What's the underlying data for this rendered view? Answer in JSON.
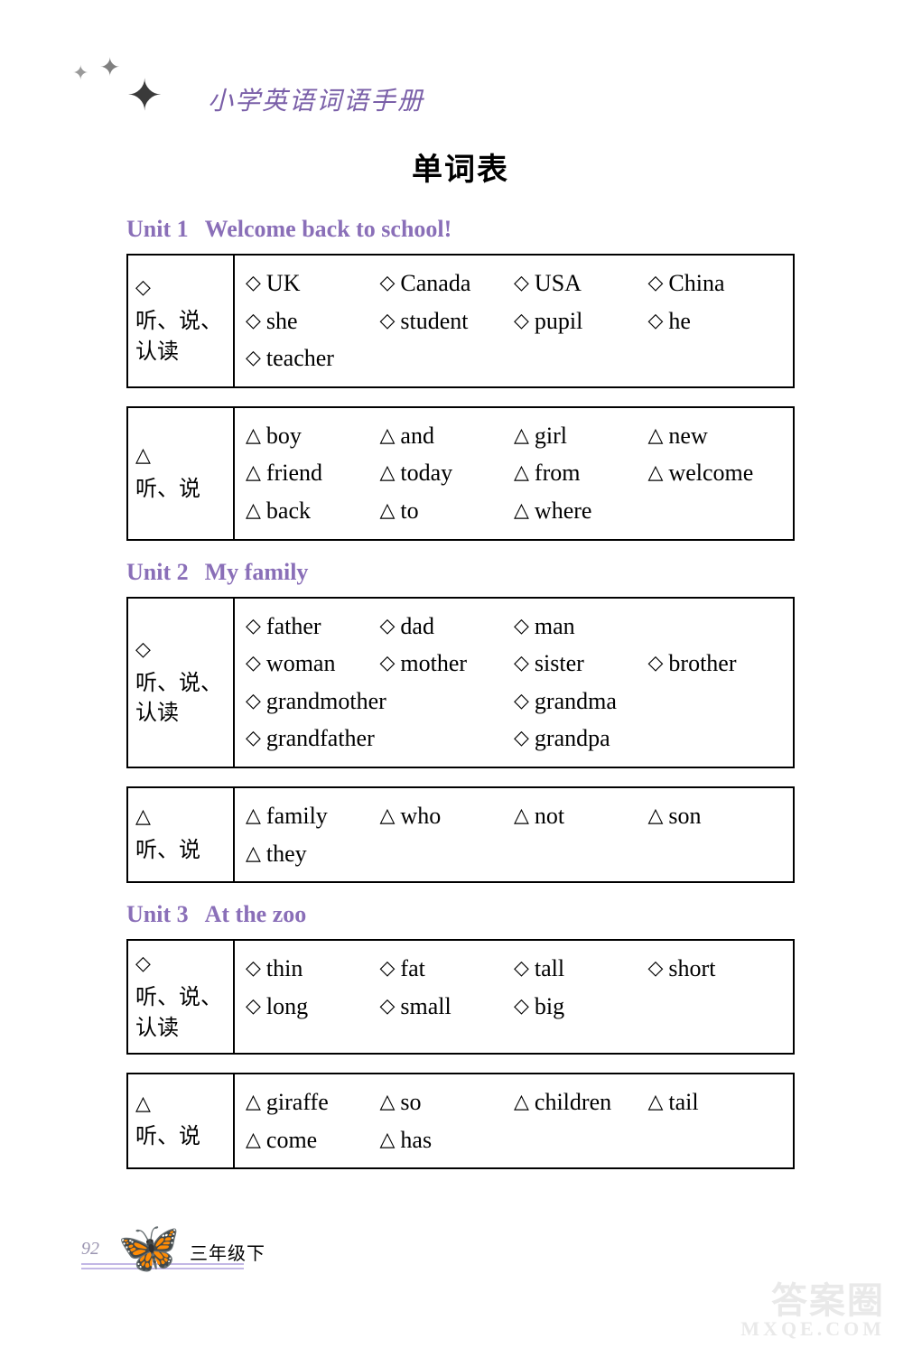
{
  "colors": {
    "text": "#000000",
    "accent": "#8a6fb8",
    "header_text": "#7a5fa8",
    "border": "#000000",
    "footer_line": "#c3b8e6",
    "watermark": "#d8d8d8",
    "background": "#ffffff"
  },
  "typography": {
    "body_fontsize": 26,
    "title_fontsize": 34,
    "unit_fontsize": 26,
    "label_fontsize": 24,
    "family": "Times New Roman / SimSun serif"
  },
  "header": {
    "subtitle": "小学英语词语手册"
  },
  "page_title": "单词表",
  "shapes": {
    "diamond": "◇",
    "triangle": "△"
  },
  "labels": {
    "listen_speak_read": "听、说、认读",
    "listen_speak": "听、说"
  },
  "units": [
    {
      "num": "Unit 1",
      "title": "Welcome back to school!",
      "boxes": [
        {
          "label_key": "listen_speak_read",
          "shape": "diamond",
          "rows": [
            [
              "UK",
              "Canada",
              "USA",
              "China"
            ],
            [
              "she",
              "student",
              "pupil",
              "he"
            ],
            [
              "teacher"
            ]
          ]
        },
        {
          "label_key": "listen_speak",
          "shape": "triangle",
          "rows": [
            [
              "boy",
              "and",
              "girl",
              "new"
            ],
            [
              "friend",
              "today",
              "from",
              "welcome"
            ],
            [
              "back",
              "to",
              "where"
            ]
          ]
        }
      ]
    },
    {
      "num": "Unit 2",
      "title": "My family",
      "boxes": [
        {
          "label_key": "listen_speak_read",
          "shape": "diamond",
          "rows_custom": [
            [
              {
                "t": "father",
                "w": "c"
              },
              {
                "t": "dad",
                "w": "c"
              },
              {
                "t": "man",
                "w": "c"
              }
            ],
            [
              {
                "t": "woman",
                "w": "c"
              },
              {
                "t": "mother",
                "w": "c"
              },
              {
                "t": "sister",
                "w": "c"
              },
              {
                "t": "brother",
                "w": "c"
              }
            ],
            [
              {
                "t": "grandmother",
                "w": "h"
              },
              {
                "t": "grandma",
                "w": "h"
              }
            ],
            [
              {
                "t": "grandfather",
                "w": "h"
              },
              {
                "t": "grandpa",
                "w": "h"
              }
            ]
          ]
        },
        {
          "label_key": "listen_speak",
          "shape": "triangle",
          "rows": [
            [
              "family",
              "who",
              "not",
              "son"
            ],
            [
              "they"
            ]
          ]
        }
      ]
    },
    {
      "num": "Unit 3",
      "title": "At the zoo",
      "boxes": [
        {
          "label_key": "listen_speak_read",
          "shape": "diamond",
          "rows": [
            [
              "thin",
              "fat",
              "tall",
              "short"
            ],
            [
              "long",
              "small",
              "big"
            ]
          ]
        },
        {
          "label_key": "listen_speak",
          "shape": "triangle",
          "rows": [
            [
              "giraffe",
              "so",
              "children",
              "tail"
            ],
            [
              "come",
              "has"
            ]
          ]
        }
      ]
    }
  ],
  "footer": {
    "page_number": "92",
    "grade": "三年级下"
  },
  "watermark": {
    "main": "答案圈",
    "sub": "MXQE.COM"
  }
}
